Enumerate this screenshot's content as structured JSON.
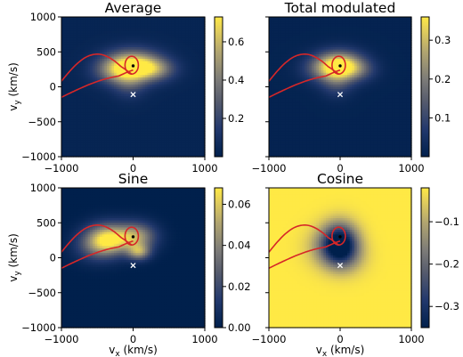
{
  "figure": {
    "ylabel": "v_y (km/s)",
    "xlabel": "v_x (km/s)"
  },
  "colors": {
    "cmap_low": "#00204c",
    "cmap_mid": "#7c7b78",
    "cmap_high": "#ffe945",
    "curve": "#d62728",
    "sun_marker": "#000000",
    "cross_marker": "#ffffff"
  },
  "chart_data": [
    {
      "type": "heatmap",
      "title": "Average",
      "xlim": [
        -1000,
        1000
      ],
      "ylim": [
        -1000,
        1000
      ],
      "xticks": [
        "−1000",
        "0",
        "1000"
      ],
      "yticks": [
        "1000",
        "500",
        "0",
        "−500",
        "−1000"
      ],
      "colorbar": {
        "range": [
          0.0,
          0.73
        ],
        "ticks": [
          {
            "v": 0.2,
            "label": "0.2"
          },
          {
            "v": 0.4,
            "label": "0.4"
          },
          {
            "v": 0.6,
            "label": "0.6"
          }
        ]
      },
      "background": 0.03,
      "blobs": [
        {
          "x": 0,
          "y": 300,
          "amp": 0.7,
          "sx": 260,
          "sy": 150
        },
        {
          "x": 300,
          "y": 250,
          "amp": 0.3,
          "sx": 200,
          "sy": 110
        },
        {
          "x": -250,
          "y": 230,
          "amp": 0.25,
          "sx": 210,
          "sy": 130
        },
        {
          "x": -50,
          "y": 50,
          "amp": 0.18,
          "sx": 160,
          "sy": 150
        }
      ],
      "marker_point": {
        "x": 0,
        "y": 300
      },
      "marker_cross": {
        "x": 0,
        "y": -110
      }
    },
    {
      "type": "heatmap",
      "title": "Total modulated",
      "xlim": [
        -1000,
        1000
      ],
      "ylim": [
        -1000,
        1000
      ],
      "xticks": [
        "−1000",
        "0",
        "1000"
      ],
      "yticks": [],
      "colorbar": {
        "range": [
          0.0,
          0.36
        ],
        "ticks": [
          {
            "v": 0.1,
            "label": "0.1"
          },
          {
            "v": 0.2,
            "label": "0.2"
          },
          {
            "v": 0.3,
            "label": "0.3"
          }
        ]
      },
      "background": 0.01,
      "blobs": [
        {
          "x": 0,
          "y": 300,
          "amp": 0.34,
          "sx": 220,
          "sy": 140
        },
        {
          "x": -200,
          "y": 260,
          "amp": 0.12,
          "sx": 220,
          "sy": 130
        },
        {
          "x": 250,
          "y": 240,
          "amp": 0.08,
          "sx": 180,
          "sy": 110
        },
        {
          "x": -50,
          "y": 40,
          "amp": 0.08,
          "sx": 150,
          "sy": 140
        }
      ],
      "marker_point": {
        "x": 0,
        "y": 300
      },
      "marker_cross": {
        "x": 0,
        "y": -110
      }
    },
    {
      "type": "heatmap",
      "title": "Sine",
      "xlim": [
        -1000,
        1000
      ],
      "ylim": [
        -1000,
        1000
      ],
      "xticks": [
        "−1000",
        "0",
        "1000"
      ],
      "yticks": [
        "1000",
        "500",
        "0",
        "−500",
        "−1000"
      ],
      "colorbar": {
        "range": [
          0.0,
          0.068
        ],
        "ticks": [
          {
            "v": 0.0,
            "label": "0.00"
          },
          {
            "v": 0.02,
            "label": "0.02"
          },
          {
            "v": 0.04,
            "label": "0.04"
          },
          {
            "v": 0.06,
            "label": "0.06"
          }
        ]
      },
      "background": 0.0,
      "blobs": [
        {
          "x": -350,
          "y": 270,
          "amp": 0.06,
          "sx": 210,
          "sy": 150
        },
        {
          "x": 50,
          "y": 300,
          "amp": 0.045,
          "sx": 190,
          "sy": 140
        },
        {
          "x": 80,
          "y": 80,
          "amp": 0.04,
          "sx": 110,
          "sy": 80
        },
        {
          "x": -500,
          "y": 150,
          "amp": 0.02,
          "sx": 220,
          "sy": 150
        }
      ],
      "marker_point": {
        "x": 0,
        "y": 300
      },
      "marker_cross": {
        "x": 0,
        "y": -110
      }
    },
    {
      "type": "heatmap",
      "title": "Cosine",
      "xlim": [
        -1000,
        1000
      ],
      "ylim": [
        -1000,
        1000
      ],
      "xticks": [
        "−1000",
        "0",
        "1000"
      ],
      "yticks": [],
      "colorbar": {
        "range": [
          -0.35,
          -0.02
        ],
        "ticks": [
          {
            "v": -0.3,
            "label": "−0.3"
          },
          {
            "v": -0.2,
            "label": "−0.2"
          },
          {
            "v": -0.1,
            "label": "−0.1"
          }
        ]
      },
      "background": -0.02,
      "blobs": [
        {
          "x": 0,
          "y": 200,
          "amp": -0.33,
          "sx": 170,
          "sy": 200
        },
        {
          "x": -150,
          "y": 150,
          "amp": -0.1,
          "sx": 220,
          "sy": 200
        },
        {
          "x": 100,
          "y": 0,
          "amp": -0.06,
          "sx": 200,
          "sy": 180
        }
      ],
      "marker_point": {
        "x": 0,
        "y": 300
      },
      "marker_cross": {
        "x": 0,
        "y": -110
      }
    }
  ]
}
